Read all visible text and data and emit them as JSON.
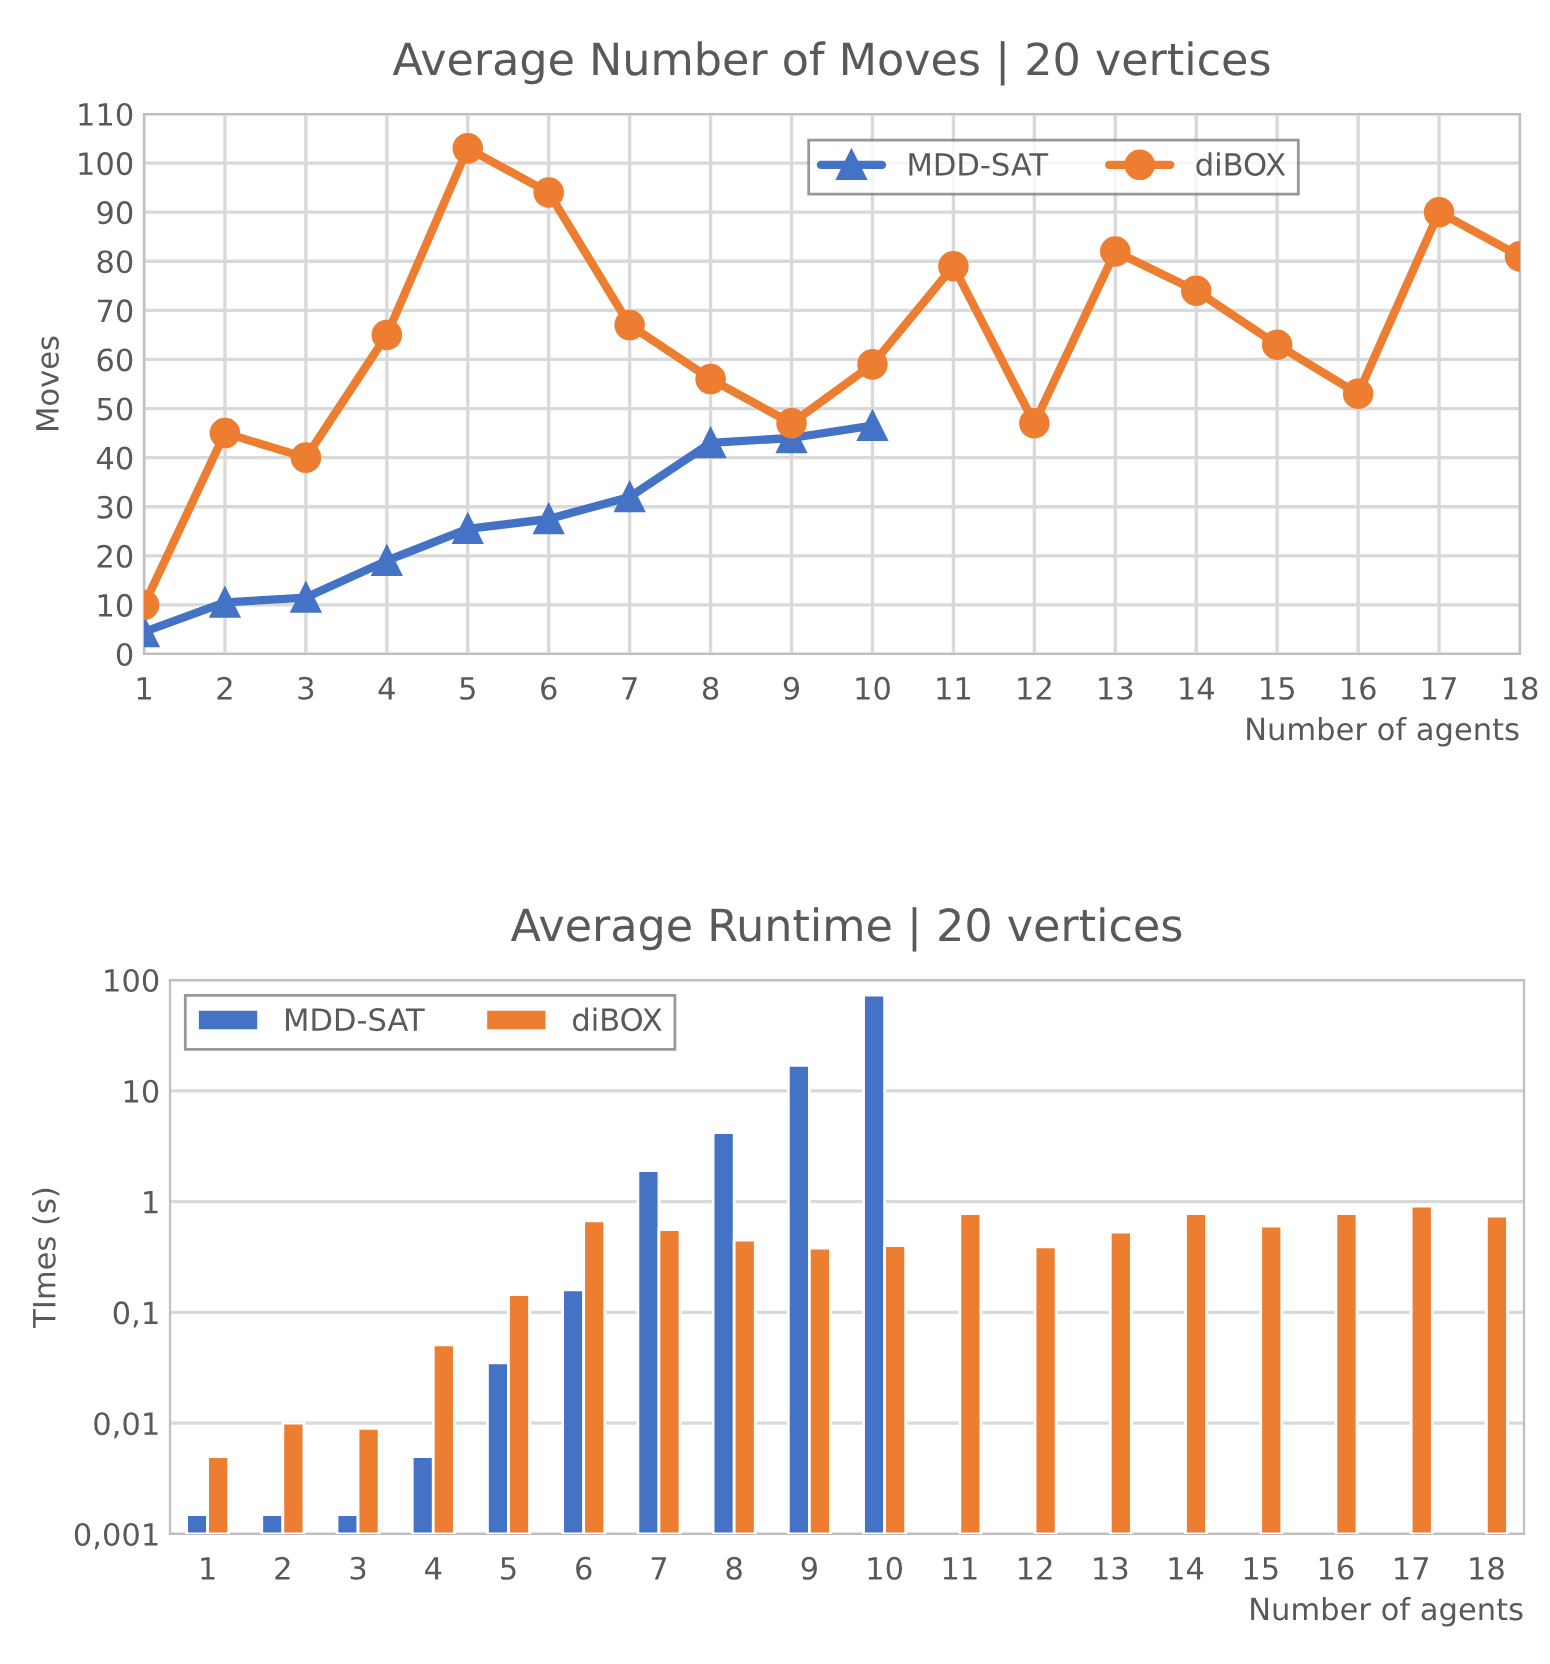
{
  "chart_data": [
    {
      "type": "line",
      "title": "Average Number of Moves | 20 vertices",
      "xlabel": "Number of agents",
      "ylabel": "Moves",
      "categories": [
        "1",
        "2",
        "3",
        "4",
        "5",
        "6",
        "7",
        "8",
        "9",
        "10",
        "11",
        "12",
        "13",
        "14",
        "15",
        "16",
        "17",
        "18"
      ],
      "series": [
        {
          "name": "MDD-SAT",
          "color": "#4472c4",
          "marker": "triangle",
          "values": [
            4.5,
            10.5,
            11.5,
            19,
            25.5,
            27.5,
            32,
            43,
            44,
            46.5,
            null,
            null,
            null,
            null,
            null,
            null,
            null,
            null
          ]
        },
        {
          "name": "diBOX",
          "color": "#ed7d31",
          "marker": "circle",
          "values": [
            10,
            45,
            40,
            65,
            103,
            94,
            67,
            56,
            47,
            59,
            79,
            47,
            82,
            74,
            63,
            53,
            90,
            81
          ]
        }
      ],
      "ylim": [
        0,
        110
      ],
      "yticks": [
        0,
        10,
        20,
        30,
        40,
        50,
        60,
        70,
        80,
        90,
        100,
        110
      ],
      "grid": true,
      "legend": "top right",
      "line_style": "solid"
    },
    {
      "type": "bar",
      "title": "Average Runtime | 20 vertices",
      "xlabel": "Number of agents",
      "ylabel": "TImes (s)",
      "categories": [
        "1",
        "2",
        "3",
        "4",
        "5",
        "6",
        "7",
        "8",
        "9",
        "10",
        "11",
        "12",
        "13",
        "14",
        "15",
        "16",
        "17",
        "18"
      ],
      "series": [
        {
          "name": "MDD-SAT",
          "color": "#4472c4",
          "values": [
            0.0015,
            0.0015,
            0.0015,
            0.005,
            0.035,
            0.16,
            1.9,
            4.2,
            17,
            73,
            null,
            null,
            null,
            null,
            null,
            null,
            null,
            null
          ]
        },
        {
          "name": "diBOX",
          "color": "#ed7d31",
          "values": [
            0.005,
            0.01,
            0.009,
            0.051,
            0.145,
            0.67,
            0.56,
            0.45,
            0.38,
            0.4,
            0.78,
            0.39,
            0.53,
            0.78,
            0.6,
            0.78,
            0.91,
            0.74
          ]
        }
      ],
      "log": true,
      "ylim": [
        0.001,
        100
      ],
      "yticks": [
        {
          "value": 0.001,
          "label": "0,001"
        },
        {
          "value": 0.01,
          "label": "0,01"
        },
        {
          "value": 0.1,
          "label": "0,1"
        },
        {
          "value": 1,
          "label": "1"
        },
        {
          "value": 10,
          "label": "10"
        },
        {
          "value": 100,
          "label": "100"
        }
      ],
      "grid": "y",
      "legend": "top left"
    }
  ]
}
